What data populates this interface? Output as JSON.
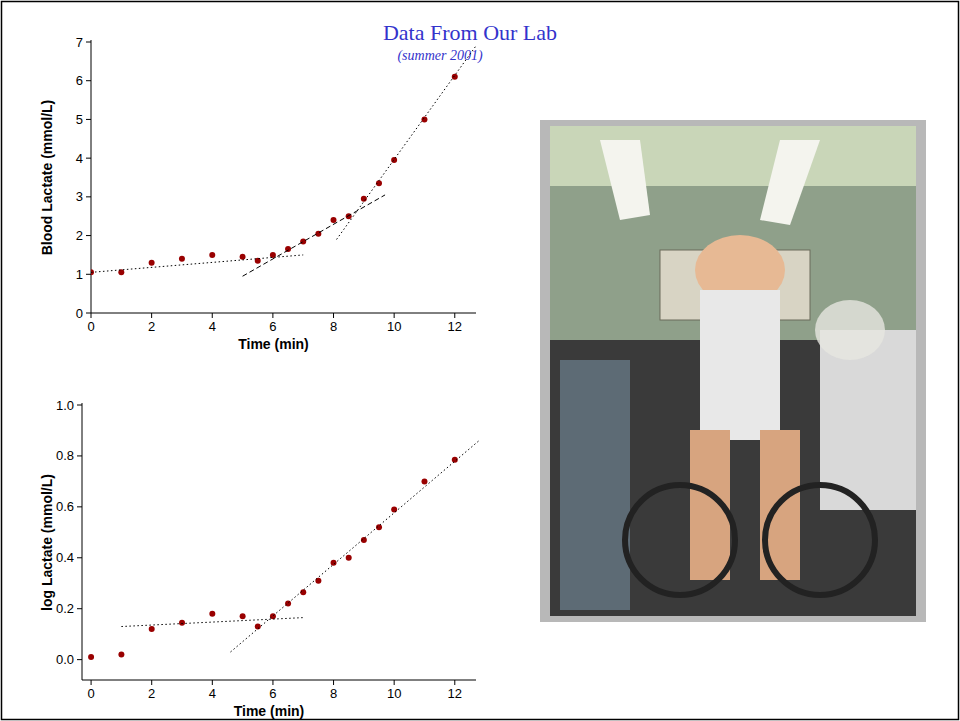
{
  "header": {
    "title": "Data From Our Lab",
    "subtitle": "(summer 2001)"
  },
  "chart_data": [
    {
      "type": "scatter",
      "xlabel": "Time (min)",
      "ylabel": "Blood Lactate (mmol/L)",
      "xlim": [
        0,
        12.7
      ],
      "ylim": [
        0,
        7
      ],
      "xticks": [
        0,
        2,
        4,
        6,
        8,
        10,
        12
      ],
      "yticks": [
        0,
        1,
        2,
        3,
        4,
        5,
        6,
        7
      ],
      "grid": false,
      "series": [
        {
          "type": "scatter",
          "color": "#990000",
          "marker": "circle",
          "x": [
            0,
            1,
            2,
            3,
            4,
            5,
            5.5,
            6,
            6.5,
            7,
            7.5,
            8,
            8.5,
            9,
            9.5,
            10,
            11,
            12
          ],
          "values": [
            1.05,
            1.05,
            1.3,
            1.4,
            1.5,
            1.45,
            1.35,
            1.5,
            1.65,
            1.85,
            2.05,
            2.4,
            2.5,
            2.95,
            3.35,
            3.95,
            5.0,
            6.1
          ]
        },
        {
          "type": "line",
          "color": "#000000",
          "line_style": "dotted",
          "x": [
            0,
            7
          ],
          "values": [
            1.05,
            1.5
          ]
        },
        {
          "type": "line",
          "color": "#000000",
          "line_style": "dashed",
          "x": [
            5,
            9.7
          ],
          "values": [
            0.95,
            3.05
          ]
        },
        {
          "type": "line",
          "color": "#000000",
          "line_style": "dotted",
          "x": [
            8.1,
            12.7
          ],
          "values": [
            1.9,
            6.9
          ]
        }
      ]
    },
    {
      "type": "scatter",
      "xlabel": "Time (min)",
      "ylabel": "log Lactate (mmol/L)",
      "xlim": [
        -0.3,
        12.7
      ],
      "ylim": [
        -0.08,
        1.0
      ],
      "xticks": [
        0,
        2,
        4,
        6,
        8,
        10,
        12
      ],
      "yticks": [
        {
          "value": 0,
          "label": "0.0"
        },
        0.2,
        0.4,
        0.6,
        0.8,
        {
          "value": 1,
          "label": "1.0"
        }
      ],
      "grid": false,
      "series": [
        {
          "type": "scatter",
          "color": "#990000",
          "marker": "circle",
          "x": [
            0,
            1,
            2,
            3,
            4,
            5,
            5.5,
            6,
            6.5,
            7,
            7.5,
            8,
            8.5,
            9,
            9.5,
            10,
            11,
            12
          ],
          "values": [
            0.01,
            0.02,
            0.12,
            0.145,
            0.18,
            0.17,
            0.13,
            0.17,
            0.22,
            0.265,
            0.31,
            0.38,
            0.4,
            0.47,
            0.52,
            0.59,
            0.7,
            0.785
          ]
        },
        {
          "type": "line",
          "color": "#000000",
          "line_style": "dotted",
          "x": [
            1,
            7
          ],
          "values": [
            0.13,
            0.165
          ]
        },
        {
          "type": "line",
          "color": "#000000",
          "line_style": "dotted",
          "x": [
            4.6,
            12.8
          ],
          "values": [
            0.03,
            0.86
          ]
        }
      ]
    }
  ]
}
